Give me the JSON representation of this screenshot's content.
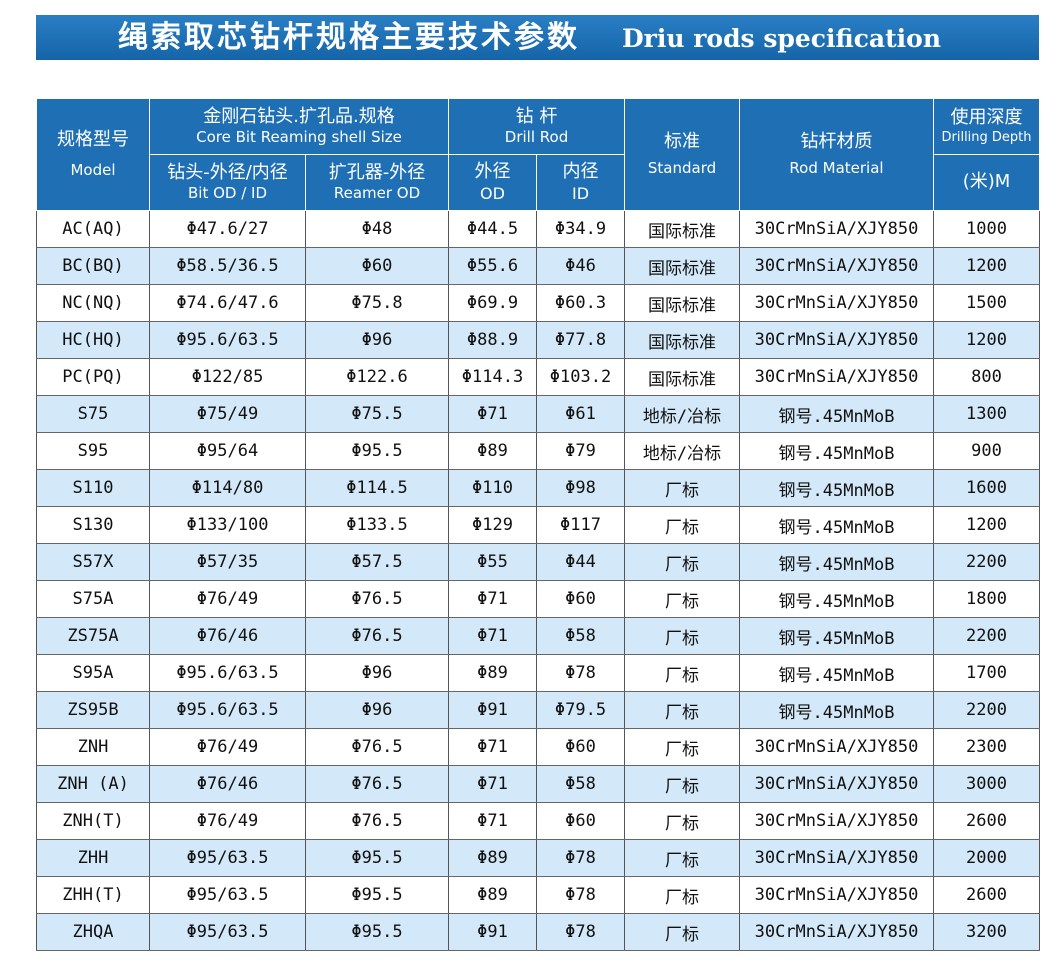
{
  "banner": {
    "title_cn": "绳索取芯钻杆规格主要技术参数",
    "title_en": "Driu rods specification"
  },
  "header": {
    "model_cn": "规格型号",
    "model_en": "Model",
    "bit_group_cn": "金刚石钻头.扩孔品.规格",
    "bit_group_en": "Core Bit  Reaming shell Size",
    "rod_group_cn": "钻  杆",
    "rod_group_en": "Drill Rod",
    "standard_cn": "标准",
    "standard_en": "Standard",
    "material_cn": "钻杆材质",
    "material_en": "Rod Material",
    "depth_cn": "使用深度",
    "depth_en": "Drilling Depth",
    "depth_unit": "(米)M",
    "bit_od_cn": "钻头-外径/内径",
    "bit_od_en": "Bit OD / ID",
    "reamer_cn": "扩孔器-外径",
    "reamer_en": "Reamer OD",
    "rod_od_cn": "外径",
    "rod_od_en": "OD",
    "rod_id_cn": "内径",
    "rod_id_en": "ID"
  },
  "rows": [
    {
      "model": "AC(AQ)",
      "bit": "Φ47.6/27",
      "reamer": "Φ48",
      "od": "Φ44.5",
      "id": "Φ34.9",
      "standard": "国际标准",
      "material": "30CrMnSiA/XJY850",
      "depth": "1000"
    },
    {
      "model": "BC(BQ)",
      "bit": "Φ58.5/36.5",
      "reamer": "Φ60",
      "od": "Φ55.6",
      "id": "Φ46",
      "standard": "国际标准",
      "material": "30CrMnSiA/XJY850",
      "depth": "1200"
    },
    {
      "model": "NC(NQ)",
      "bit": "Φ74.6/47.6",
      "reamer": "Φ75.8",
      "od": "Φ69.9",
      "id": "Φ60.3",
      "standard": "国际标准",
      "material": "30CrMnSiA/XJY850",
      "depth": "1500"
    },
    {
      "model": "HC(HQ)",
      "bit": "Φ95.6/63.5",
      "reamer": "Φ96",
      "od": "Φ88.9",
      "id": "Φ77.8",
      "standard": "国际标准",
      "material": "30CrMnSiA/XJY850",
      "depth": "1200"
    },
    {
      "model": "PC(PQ)",
      "bit": "Φ122/85",
      "reamer": "Φ122.6",
      "od": "Φ114.3",
      "id": "Φ103.2",
      "standard": "国际标准",
      "material": "30CrMnSiA/XJY850",
      "depth": "800"
    },
    {
      "model": "S75",
      "bit": "Φ75/49",
      "reamer": "Φ75.5",
      "od": "Φ71",
      "id": "Φ61",
      "standard": "地标/冶标",
      "material": "钢号.45MnMoB",
      "depth": "1300"
    },
    {
      "model": "S95",
      "bit": "Φ95/64",
      "reamer": "Φ95.5",
      "od": "Φ89",
      "id": "Φ79",
      "standard": "地标/冶标",
      "material": "钢号.45MnMoB",
      "depth": "900"
    },
    {
      "model": "S110",
      "bit": "Φ114/80",
      "reamer": "Φ114.5",
      "od": "Φ110",
      "id": "Φ98",
      "standard": "厂标",
      "material": "钢号.45MnMoB",
      "depth": "1600"
    },
    {
      "model": "S130",
      "bit": "Φ133/100",
      "reamer": "Φ133.5",
      "od": "Φ129",
      "id": "Φ117",
      "standard": "厂标",
      "material": "钢号.45MnMoB",
      "depth": "1200"
    },
    {
      "model": "S57X",
      "bit": "Φ57/35",
      "reamer": "Φ57.5",
      "od": "Φ55",
      "id": "Φ44",
      "standard": "厂标",
      "material": "钢号.45MnMoB",
      "depth": "2200"
    },
    {
      "model": "S75A",
      "bit": "Φ76/49",
      "reamer": "Φ76.5",
      "od": "Φ71",
      "id": "Φ60",
      "standard": "厂标",
      "material": "钢号.45MnMoB",
      "depth": "1800"
    },
    {
      "model": "ZS75A",
      "bit": "Φ76/46",
      "reamer": "Φ76.5",
      "od": "Φ71",
      "id": "Φ58",
      "standard": "厂标",
      "material": "钢号.45MnMoB",
      "depth": "2200"
    },
    {
      "model": "S95A",
      "bit": "Φ95.6/63.5",
      "reamer": "Φ96",
      "od": "Φ89",
      "id": "Φ78",
      "standard": "厂标",
      "material": "钢号.45MnMoB",
      "depth": "1700"
    },
    {
      "model": "ZS95B",
      "bit": "Φ95.6/63.5",
      "reamer": "Φ96",
      "od": "Φ91",
      "id": "Φ79.5",
      "standard": "厂标",
      "material": "钢号.45MnMoB",
      "depth": "2200"
    },
    {
      "model": "ZNH",
      "bit": "Φ76/49",
      "reamer": "Φ76.5",
      "od": "Φ71",
      "id": "Φ60",
      "standard": "厂标",
      "material": "30CrMnSiA/XJY850",
      "depth": "2300"
    },
    {
      "model": "ZNH (A)",
      "bit": "Φ76/46",
      "reamer": "Φ76.5",
      "od": "Φ71",
      "id": "Φ58",
      "standard": "厂标",
      "material": "30CrMnSiA/XJY850",
      "depth": "3000"
    },
    {
      "model": "ZNH(T)",
      "bit": "Φ76/49",
      "reamer": "Φ76.5",
      "od": "Φ71",
      "id": "Φ60",
      "standard": "厂标",
      "material": "30CrMnSiA/XJY850",
      "depth": "2600"
    },
    {
      "model": "ZHH",
      "bit": "Φ95/63.5",
      "reamer": "Φ95.5",
      "od": "Φ89",
      "id": "Φ78",
      "standard": "厂标",
      "material": "30CrMnSiA/XJY850",
      "depth": "2000"
    },
    {
      "model": "ZHH(T)",
      "bit": "Φ95/63.5",
      "reamer": "Φ95.5",
      "od": "Φ89",
      "id": "Φ78",
      "standard": "厂标",
      "material": "30CrMnSiA/XJY850",
      "depth": "2600"
    },
    {
      "model": "ZHQA",
      "bit": "Φ95/63.5",
      "reamer": "Φ95.5",
      "od": "Φ91",
      "id": "Φ78",
      "standard": "厂标",
      "material": "30CrMnSiA/XJY850",
      "depth": "3200"
    }
  ]
}
